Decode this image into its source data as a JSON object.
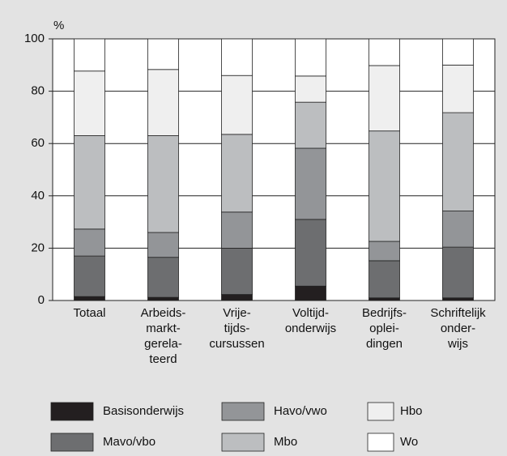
{
  "chart_data": {
    "type": "stacked_bar",
    "y_unit": "%",
    "categories": [
      [
        "Totaal"
      ],
      [
        "Arbeids-",
        "markt-",
        "gerela-",
        "teerd"
      ],
      [
        "Vrije-",
        "tijds-",
        "cursussen"
      ],
      [
        "Voltijd-",
        "onderwijs"
      ],
      [
        "Bedrijfs-",
        "oplei-",
        "dingen"
      ],
      [
        "Schriftelijk",
        "onder-",
        "wijs"
      ]
    ],
    "series": [
      {
        "name": "Basisonderwijs",
        "color": "#231f20",
        "values": [
          1.5,
          1.2,
          2.3,
          5.5,
          1,
          1
        ]
      },
      {
        "name": "Mavo/vbo",
        "color": "#6d6e70",
        "values": [
          15.5,
          15.3,
          17.7,
          25.5,
          14.2,
          19.4
        ]
      },
      {
        "name": "Havo/vwo",
        "color": "#939598",
        "values": [
          10.3,
          9.5,
          13.8,
          27.2,
          7.4,
          13.8
        ]
      },
      {
        "name": "Mbo",
        "color": "#bcbec0",
        "values": [
          35.7,
          37,
          29.7,
          17.6,
          42.2,
          37.6
        ]
      },
      {
        "name": "Hbo",
        "color": "#efefef",
        "values": [
          24.7,
          25.3,
          22.5,
          10,
          25,
          18.2
        ]
      },
      {
        "name": "Wo",
        "color": "#ffffff",
        "values": [
          12.3,
          11.7,
          14,
          14.2,
          10.2,
          10
        ]
      }
    ],
    "ylim": [
      0,
      100
    ],
    "yticks": [
      0,
      20,
      40,
      60,
      80,
      100
    ],
    "grid": true
  }
}
